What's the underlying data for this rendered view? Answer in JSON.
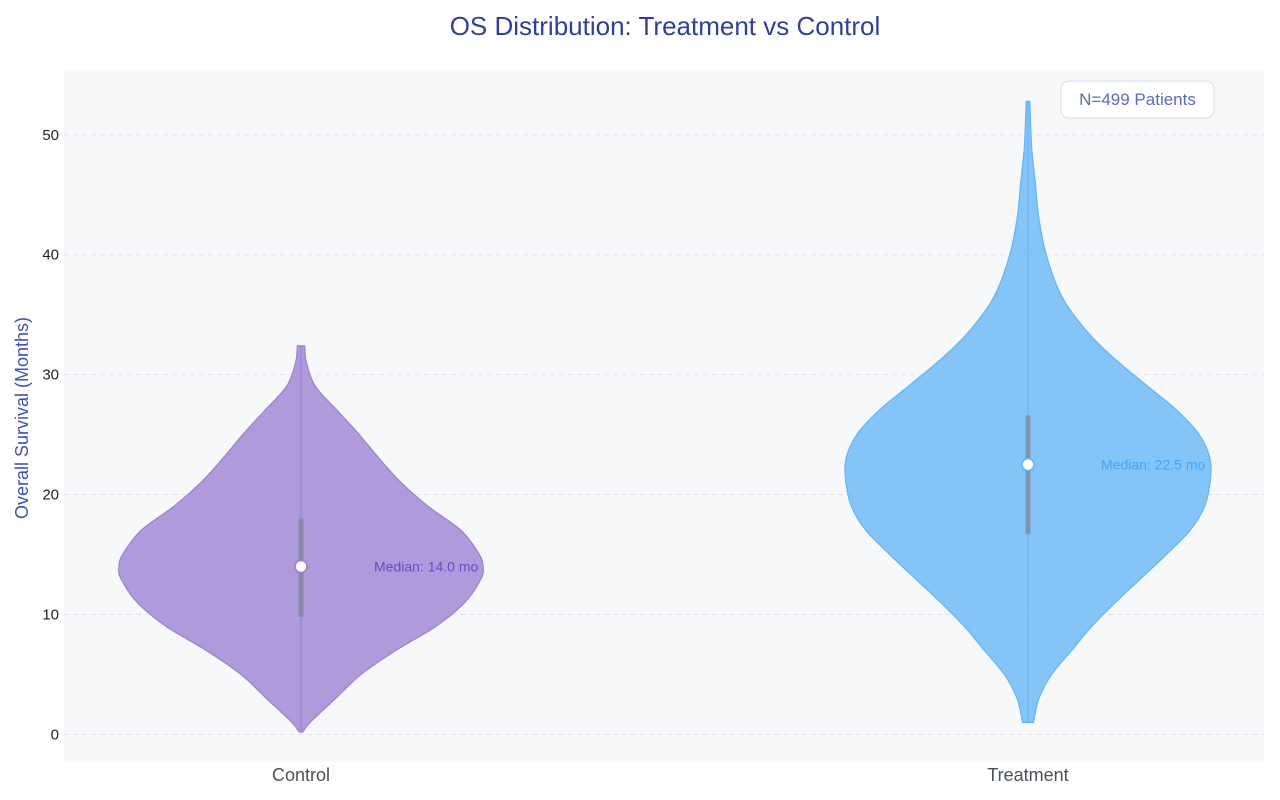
{
  "chart_data": {
    "type": "violin",
    "title": "OS Distribution: Treatment vs Control",
    "xlabel": "",
    "ylabel": "Overall Survival (Months)",
    "categories": [
      "Control",
      "Treatment"
    ],
    "ylim": [
      -2.3,
      55.4
    ],
    "yticks": [
      0,
      10,
      20,
      30,
      40,
      50
    ],
    "grid": true,
    "annotation": "N=499 Patients",
    "annotation_position": "top-right",
    "series": [
      {
        "category": "Control",
        "color": "#9b7fd4",
        "median": 14.0,
        "median_label": "Median: 14.0 mo",
        "q1": 9.8,
        "q3": 18.0,
        "min": 0.2,
        "max": 32.4,
        "density_profile": [
          [
            0.2,
            0.01
          ],
          [
            1,
            0.05
          ],
          [
            3,
            0.19
          ],
          [
            5,
            0.33
          ],
          [
            7,
            0.52
          ],
          [
            9,
            0.74
          ],
          [
            11,
            0.9
          ],
          [
            13,
            0.99
          ],
          [
            14,
            1.0
          ],
          [
            15,
            0.98
          ],
          [
            17,
            0.88
          ],
          [
            19,
            0.7
          ],
          [
            21,
            0.55
          ],
          [
            23,
            0.43
          ],
          [
            25,
            0.32
          ],
          [
            27,
            0.2
          ],
          [
            29,
            0.08
          ],
          [
            31,
            0.03
          ],
          [
            32.4,
            0.02
          ]
        ]
      },
      {
        "category": "Treatment",
        "color": "#64b5f6",
        "median": 22.5,
        "median_label": "Median: 22.5 mo",
        "q1": 16.7,
        "q3": 26.6,
        "min": 1.0,
        "max": 52.8,
        "density_profile": [
          [
            1,
            0.03
          ],
          [
            3,
            0.06
          ],
          [
            5,
            0.13
          ],
          [
            7,
            0.24
          ],
          [
            9,
            0.35
          ],
          [
            11,
            0.48
          ],
          [
            13,
            0.62
          ],
          [
            15,
            0.76
          ],
          [
            17,
            0.89
          ],
          [
            19,
            0.97
          ],
          [
            21,
            1.0
          ],
          [
            23,
            1.0
          ],
          [
            25,
            0.94
          ],
          [
            27,
            0.82
          ],
          [
            29,
            0.66
          ],
          [
            31,
            0.5
          ],
          [
            33,
            0.36
          ],
          [
            35,
            0.25
          ],
          [
            37,
            0.17
          ],
          [
            40,
            0.1
          ],
          [
            43,
            0.06
          ],
          [
            46,
            0.04
          ],
          [
            49,
            0.02
          ],
          [
            52.8,
            0.01
          ]
        ]
      }
    ]
  },
  "style": {
    "title_color": "#303f9f",
    "ylabel_color": "#3f51b5",
    "annotation_text_color": "#5c6bc0",
    "plot_background": "#f6f8fa",
    "grid_color": "#dfe3e8",
    "quartile_bar_color": "#7e8796",
    "control_label_color": "#6a4bbf",
    "treatment_label_color": "#42a5f5"
  }
}
